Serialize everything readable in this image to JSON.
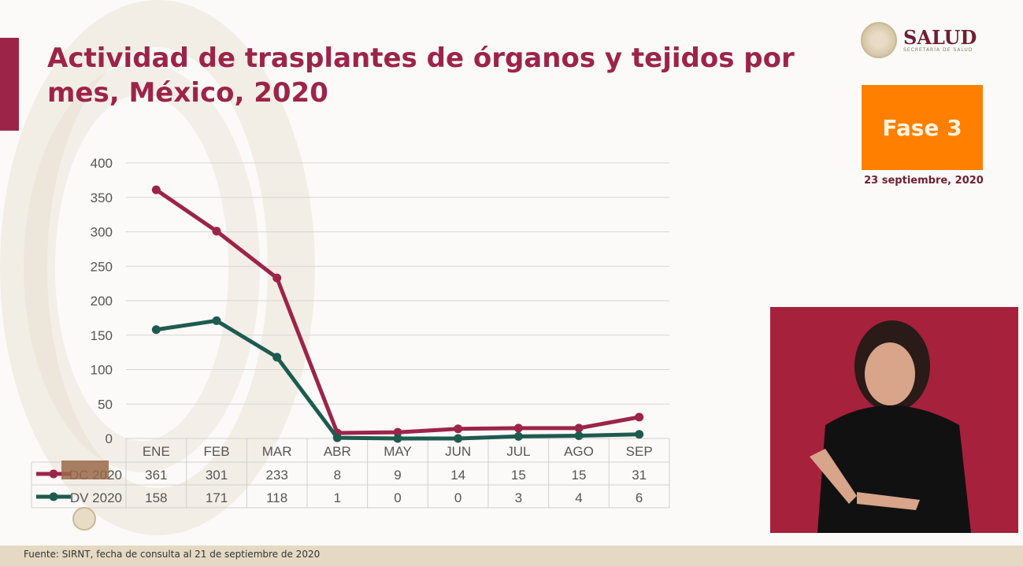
{
  "header": {
    "title": "Actividad de trasplantes de órganos y tejidos por mes, México, 2020"
  },
  "logo": {
    "name": "SALUD",
    "subtitle": "SECRETARÍA DE SALUD"
  },
  "phase": {
    "label": "Fase 3",
    "color": "#ff8000"
  },
  "date": "23 septiembre, 2020",
  "footer": {
    "source": "Fuente: SIRNT, fecha de consulta al 21 de septiembre de 2020"
  },
  "chart_data": {
    "type": "line",
    "title": "",
    "categories": [
      "ENE",
      "FEB",
      "MAR",
      "ABR",
      "MAY",
      "JUN",
      "JUL",
      "AGO",
      "SEP"
    ],
    "ylim": [
      0,
      400
    ],
    "yticks": [
      0,
      50,
      100,
      150,
      200,
      250,
      300,
      350,
      400
    ],
    "grid": true,
    "legend": "bottom-left data table",
    "series": [
      {
        "name": "DC 2020",
        "color": "#9d2449",
        "values": [
          361,
          301,
          233,
          8,
          9,
          14,
          15,
          15,
          31
        ]
      },
      {
        "name": "DV 2020",
        "color": "#1e5b4f",
        "values": [
          158,
          171,
          118,
          1,
          0,
          0,
          3,
          4,
          6
        ]
      }
    ]
  }
}
